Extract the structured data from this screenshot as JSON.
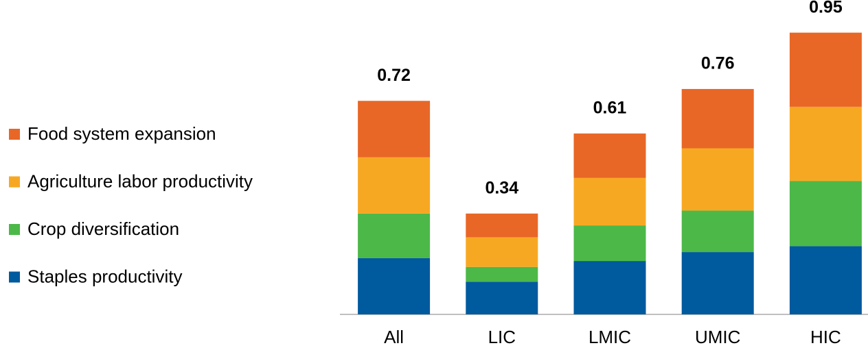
{
  "chart_data": {
    "type": "stacked-bar",
    "categories": [
      "All",
      "LIC",
      "LMIC",
      "UMIC",
      "HIC"
    ],
    "series": [
      {
        "name": "Staples productivity",
        "color": "#005a9e",
        "values": [
          0.19,
          0.11,
          0.18,
          0.21,
          0.23
        ]
      },
      {
        "name": "Crop diversification",
        "color": "#4cb848",
        "values": [
          0.15,
          0.05,
          0.12,
          0.14,
          0.22
        ]
      },
      {
        "name": "Agriculture labor productivity",
        "color": "#f7a823",
        "values": [
          0.19,
          0.1,
          0.16,
          0.21,
          0.25
        ]
      },
      {
        "name": "Food system expansion",
        "color": "#e86726",
        "values": [
          0.19,
          0.08,
          0.15,
          0.2,
          0.25
        ]
      }
    ],
    "totals": [
      0.72,
      0.34,
      0.61,
      0.76,
      0.95
    ],
    "ylim": [
      0,
      1
    ],
    "legend": "left"
  }
}
